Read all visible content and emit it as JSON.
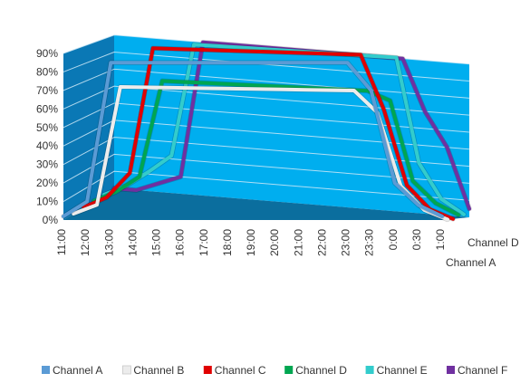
{
  "chart_data": {
    "type": "line",
    "title": "",
    "xlabel": "",
    "ylabel": "",
    "ylim": [
      0,
      90
    ],
    "y_ticks": [
      "0%",
      "10%",
      "20%",
      "30%",
      "40%",
      "50%",
      "60%",
      "70%",
      "80%",
      "90%"
    ],
    "categories": [
      "11:00",
      "12:00",
      "13:00",
      "14:00",
      "15:00",
      "16:00",
      "17:00",
      "18:00",
      "19:00",
      "20:00",
      "21:00",
      "22:00",
      "23:00",
      "23:30",
      "0:00",
      "0:30",
      "1:00"
    ],
    "depth_labels": [
      "Channel A",
      "Channel D"
    ],
    "grid": true,
    "legend_position": "bottom",
    "colors": {
      "back_wall": "#00aeef",
      "side_wall": "#0a78b5",
      "floor": "#0b6e9e",
      "grid": "#cfe9f7"
    },
    "series": [
      {
        "name": "Channel A",
        "color": "#5b9bd5",
        "values": [
          2,
          10,
          85,
          85,
          85,
          85,
          85,
          85,
          85,
          85,
          85,
          85,
          85,
          70,
          20,
          8,
          2
        ]
      },
      {
        "name": "Channel B",
        "color": "#ececec",
        "values": [
          0,
          5,
          70,
          70,
          70,
          70,
          70,
          70,
          70,
          70,
          70,
          70,
          70,
          58,
          18,
          5,
          0
        ]
      },
      {
        "name": "Channel C",
        "color": "#e00000",
        "values": [
          0,
          6,
          20,
          90,
          90,
          90,
          90,
          90,
          90,
          90,
          90,
          90,
          90,
          60,
          18,
          5,
          0
        ]
      },
      {
        "name": "Channel D",
        "color": "#00a651",
        "values": [
          0,
          6,
          15,
          70,
          70,
          70,
          70,
          70,
          70,
          70,
          70,
          70,
          70,
          65,
          20,
          8,
          2
        ]
      },
      {
        "name": "Channel E",
        "color": "#33cccc",
        "values": [
          0,
          6,
          15,
          25,
          90,
          90,
          90,
          90,
          90,
          90,
          90,
          90,
          90,
          90,
          30,
          10,
          2
        ]
      },
      {
        "name": "Channel F",
        "color": "#7030a0",
        "values": [
          0,
          0,
          5,
          10,
          90,
          90,
          90,
          90,
          90,
          90,
          90,
          90,
          90,
          90,
          60,
          40,
          5
        ]
      }
    ]
  }
}
